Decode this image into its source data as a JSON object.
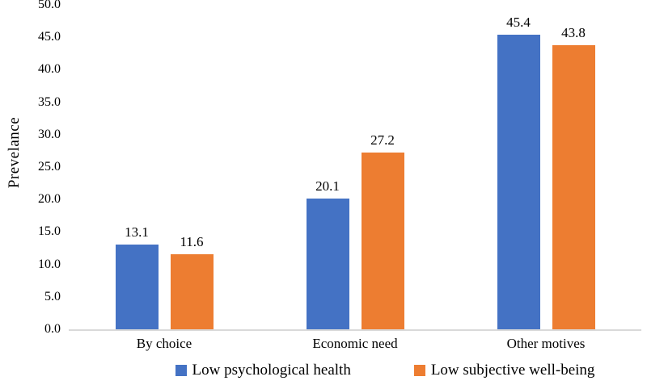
{
  "chart_data": {
    "type": "bar",
    "title": "",
    "xlabel": "",
    "ylabel": "Prevelance",
    "ylim": [
      0,
      50
    ],
    "y_tick_step": 5,
    "y_tick_labels": [
      "0.0",
      "5.0",
      "10.0",
      "15.0",
      "20.0",
      "25.0",
      "30.0",
      "35.0",
      "40.0",
      "45.0",
      "50.0"
    ],
    "grid": false,
    "legend_position": "bottom",
    "categories": [
      "By choice",
      "Economic need",
      "Other motives"
    ],
    "series": [
      {
        "name": "Low psychological health",
        "color": "#4472C4",
        "values": [
          13.1,
          20.1,
          45.4
        ],
        "value_labels": [
          "13.1",
          "20.1",
          "45.4"
        ]
      },
      {
        "name": "Low subjective well-being",
        "color": "#ED7D31",
        "values": [
          11.6,
          27.2,
          43.8
        ],
        "value_labels": [
          "11.6",
          "27.2",
          "43.8"
        ]
      }
    ],
    "colors": {
      "axis_line": "#d9d9d9",
      "text": "#000000"
    }
  }
}
